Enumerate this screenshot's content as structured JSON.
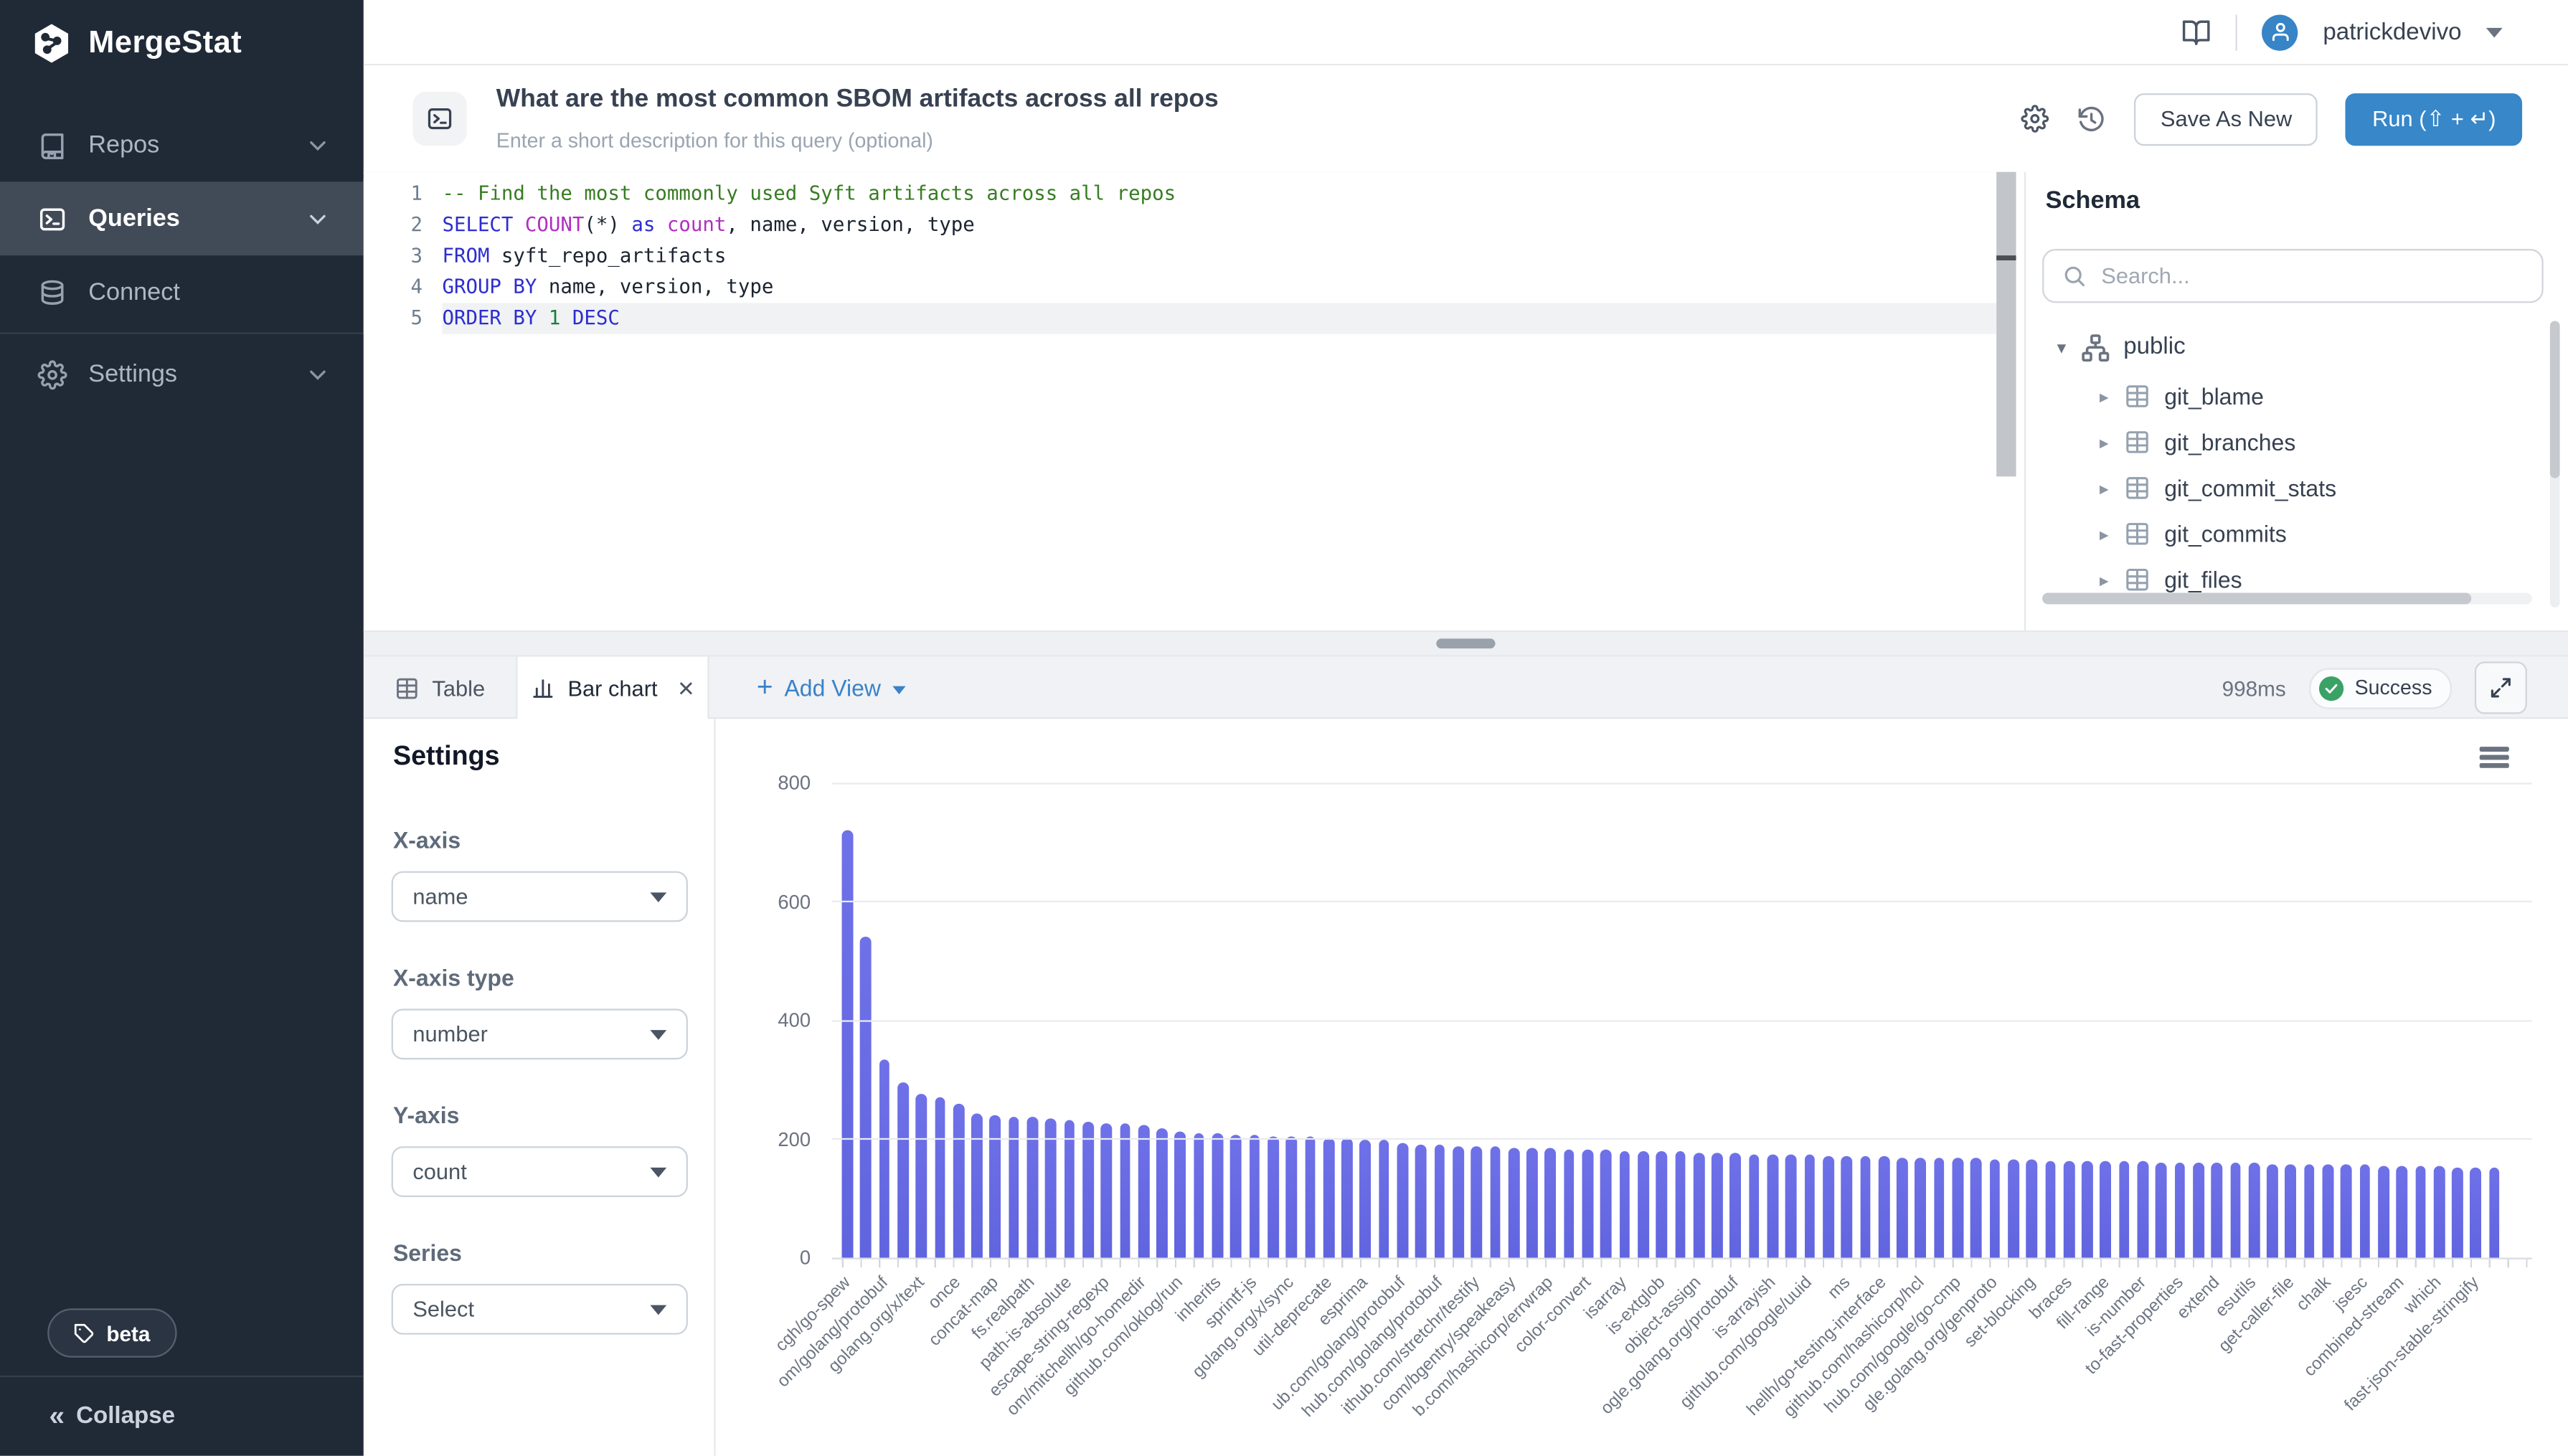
{
  "colors": {
    "sidebar_bg": "#202a37",
    "sidebar_active_bg": "#414b58",
    "accent_blue": "#3787c9",
    "link_blue": "#3b82c8",
    "success_green": "#3ba265",
    "bar_purple": "#6467e2"
  },
  "sidebar": {
    "brand": "MergeStat",
    "items": [
      {
        "label": "Repos",
        "icon": "repo-book-icon",
        "has_chevron": true,
        "active": false
      },
      {
        "label": "Queries",
        "icon": "terminal-icon",
        "has_chevron": true,
        "active": true
      },
      {
        "label": "Connect",
        "icon": "database-icon",
        "has_chevron": false,
        "active": false
      },
      {
        "label": "Settings",
        "icon": "gear-icon",
        "has_chevron": true,
        "active": false
      }
    ],
    "beta_label": "beta",
    "collapse_label": "Collapse"
  },
  "topbar": {
    "username": "patrickdevivo"
  },
  "query_header": {
    "title": "What are the most common SBOM artifacts across all repos",
    "description_placeholder": "Enter a short description for this query (optional)",
    "save_button_label": "Save As New",
    "run_button_label": "Run (⇧ + ↵)"
  },
  "editor": {
    "lines": [
      {
        "num": "1",
        "active": false,
        "tokens": [
          {
            "t": "-- Find the most commonly used Syft artifacts across all repos",
            "c": "comment"
          }
        ]
      },
      {
        "num": "2",
        "active": false,
        "tokens": [
          {
            "t": "SELECT ",
            "c": "kw"
          },
          {
            "t": "COUNT",
            "c": "fn"
          },
          {
            "t": "(*) ",
            "c": "plain"
          },
          {
            "t": "as ",
            "c": "kw"
          },
          {
            "t": "count",
            "c": "fn"
          },
          {
            "t": ", name, version, type",
            "c": "plain"
          }
        ]
      },
      {
        "num": "3",
        "active": false,
        "tokens": [
          {
            "t": "FROM ",
            "c": "kw"
          },
          {
            "t": "syft_repo_artifacts",
            "c": "plain"
          }
        ]
      },
      {
        "num": "4",
        "active": false,
        "tokens": [
          {
            "t": "GROUP BY ",
            "c": "kw"
          },
          {
            "t": "name, version, type",
            "c": "plain"
          }
        ]
      },
      {
        "num": "5",
        "active": true,
        "tokens": [
          {
            "t": "ORDER BY ",
            "c": "kw"
          },
          {
            "t": "1 ",
            "c": "num"
          },
          {
            "t": "DESC",
            "c": "kw"
          }
        ]
      }
    ]
  },
  "schema": {
    "title": "Schema",
    "search_placeholder": "Search...",
    "root": "public",
    "tables": [
      "git_blame",
      "git_branches",
      "git_commit_stats",
      "git_commits",
      "git_files"
    ]
  },
  "results": {
    "tabs": [
      {
        "label": "Table",
        "icon": "table-icon",
        "active": false
      },
      {
        "label": "Bar chart",
        "icon": "bar-chart-icon",
        "active": true,
        "closable": true
      }
    ],
    "add_view_label": "Add View",
    "duration": "998ms",
    "status": "Success"
  },
  "settings_panel": {
    "title": "Settings",
    "fields": [
      {
        "label": "X-axis",
        "value": "name"
      },
      {
        "label": "X-axis type",
        "value": "number"
      },
      {
        "label": "Y-axis",
        "value": "count"
      },
      {
        "label": "Series",
        "value": "Select"
      }
    ]
  },
  "chart_data": {
    "type": "bar",
    "title": "",
    "xlabel": "name",
    "ylabel": "count",
    "ylim": [
      0,
      800
    ],
    "y_ticks": [
      0,
      200,
      400,
      600,
      800
    ],
    "grid": true,
    "legend_position": "none",
    "bar_color": "#6467e2",
    "values": [
      720,
      540,
      335,
      296,
      275,
      271,
      258,
      242,
      240,
      238,
      236,
      234,
      233,
      230,
      226,
      225,
      224,
      219,
      212,
      211,
      209,
      207,
      206,
      205,
      204,
      203,
      202,
      201,
      200,
      198,
      193,
      191,
      190,
      189,
      188,
      187,
      186,
      185,
      184,
      183,
      182,
      181,
      180,
      180,
      179,
      178,
      177,
      176,
      176,
      175,
      174,
      173,
      173,
      172,
      171,
      171,
      170,
      169,
      169,
      168,
      167,
      167,
      166,
      166,
      165,
      164,
      164,
      163,
      163,
      162,
      162,
      161,
      161,
      160,
      160,
      159,
      159,
      158,
      158,
      157,
      157,
      156,
      156,
      155,
      155,
      154,
      154,
      153,
      153,
      152
    ],
    "x_labels_visible": [
      "cgh/go-spew",
      "om/golang/protobuf",
      "golang.org/x/text",
      "once",
      "concat-map",
      "fs.realpath",
      "path-is-absolute",
      "escape-string-regexp",
      "om/mitchellh/go-homedir",
      "github.com/oklog/run",
      "inherits",
      "sprintf-js",
      "golang.org/x/sync",
      "util-deprecate",
      "esprima",
      "ub.com/golang/protobuf",
      "hub.com/golang/protobuf",
      "ithub.com/stretchr/testify",
      "com/bgentry/speakeasy",
      "b.com/hashicorp/errwrap",
      "color-convert",
      "isarray",
      "is-extglob",
      "object-assign",
      "ogle.golang.org/protobuf",
      "is-arrayish",
      "github.com/google/uuid",
      "ms",
      "hellh/go-testing-interface",
      "github.com/hashicorp/hcl",
      "hub.com/google/go-cmp",
      "gle.golang.org/genproto",
      "set-blocking",
      "braces",
      "fill-range",
      "is-number",
      "to-fast-properties",
      "extend",
      "esutils",
      "get-caller-file",
      "chalk",
      "jsesc",
      "combined-stream",
      "which",
      "fast-json-stable-stringify"
    ],
    "x_label_interval": 2
  }
}
